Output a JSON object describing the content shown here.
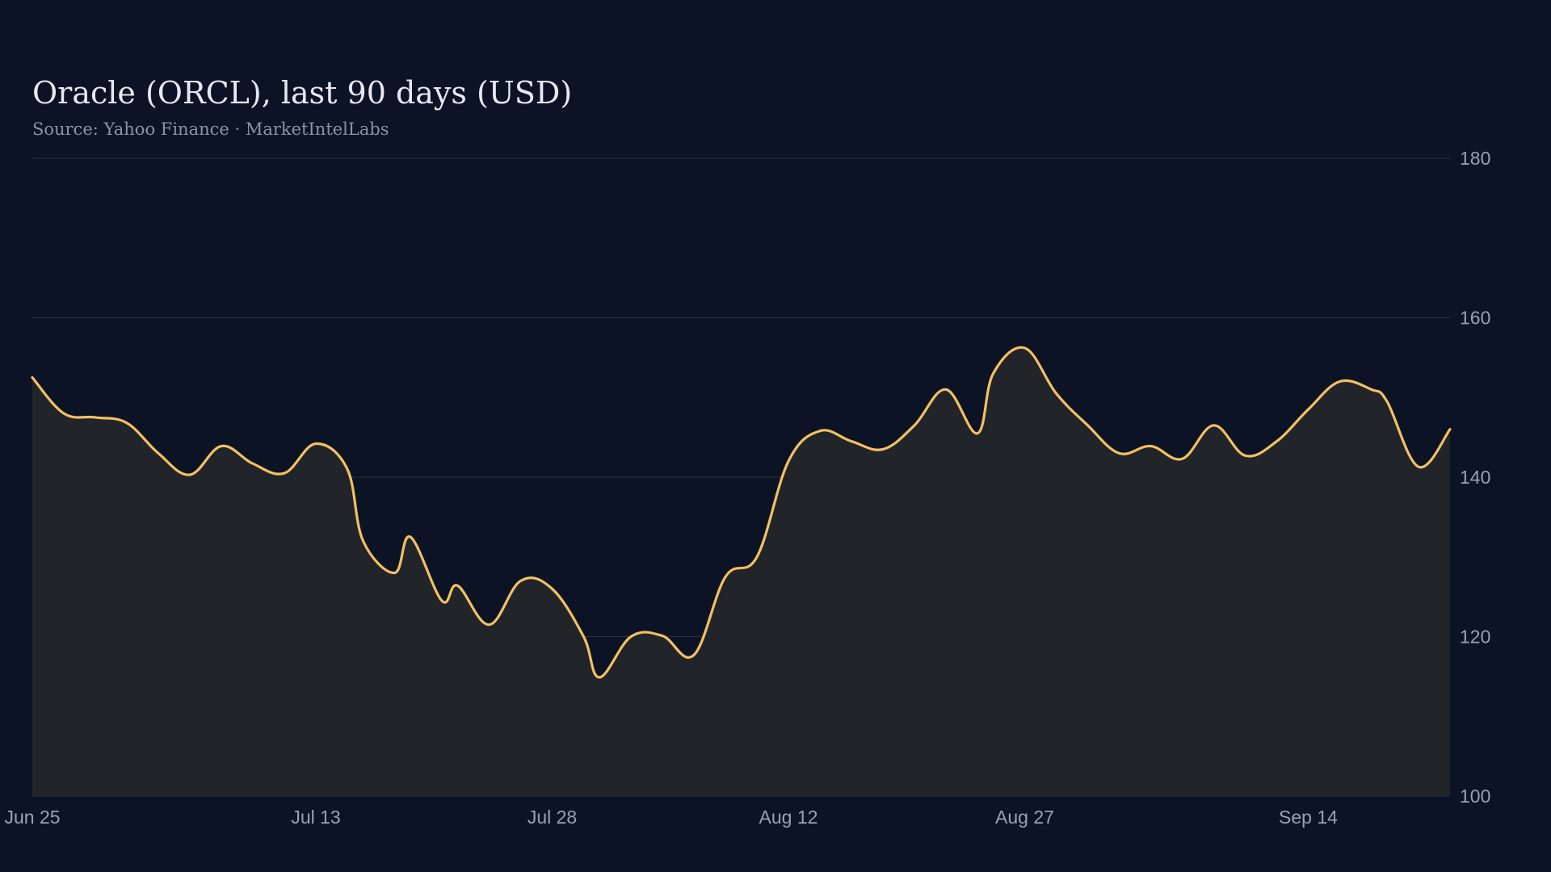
{
  "chart_data": {
    "type": "area",
    "title": "Oracle (ORCL), last 90 days (USD)",
    "subtitle": "Source: Yahoo Finance · MarketIntelLabs",
    "xlabel": "",
    "ylabel": "",
    "ylim": [
      100,
      180
    ],
    "y_ticks": [
      100,
      120,
      140,
      160,
      180
    ],
    "grid": true,
    "legend": "none",
    "x_tick_labels": [
      "Jun 25",
      "Jul 13",
      "Jul 28",
      "Aug 12",
      "Aug 27",
      "Sep 14"
    ],
    "x_ticks": [
      "2024-06-25",
      "2024-07-13",
      "2024-07-28",
      "2024-08-12",
      "2024-08-27",
      "2024-09-14"
    ],
    "x_range": [
      "2024-06-25",
      "2024-09-23"
    ],
    "colors": {
      "line": "#f2c063",
      "fill": "#212429",
      "background": "#0c1324"
    },
    "series": [
      {
        "x": [
          "2024-06-25",
          "2024-06-27",
          "2024-06-29",
          "2024-07-01",
          "2024-07-03",
          "2024-07-05",
          "2024-07-07",
          "2024-07-09",
          "2024-07-11",
          "2024-07-13",
          "2024-07-15",
          "2024-07-16",
          "2024-07-18",
          "2024-07-19",
          "2024-07-21",
          "2024-07-22",
          "2024-07-24",
          "2024-07-26",
          "2024-07-28",
          "2024-07-30",
          "2024-07-31",
          "2024-08-02",
          "2024-08-04",
          "2024-08-06",
          "2024-08-08",
          "2024-08-10",
          "2024-08-12",
          "2024-08-14",
          "2024-08-16",
          "2024-08-18",
          "2024-08-20",
          "2024-08-22",
          "2024-08-24",
          "2024-08-25",
          "2024-08-27",
          "2024-08-29",
          "2024-08-31",
          "2024-09-02",
          "2024-09-04",
          "2024-09-06",
          "2024-09-08",
          "2024-09-10",
          "2024-09-12",
          "2024-09-14",
          "2024-09-16",
          "2024-09-18",
          "2024-09-19",
          "2024-09-21",
          "2024-09-23"
        ],
        "values": [
          152.5,
          148.0,
          147.5,
          146.8,
          143.0,
          140.3,
          143.9,
          141.7,
          140.5,
          144.2,
          141.0,
          132.0,
          128.0,
          132.5,
          124.5,
          126.4,
          121.5,
          127.0,
          126.0,
          120.0,
          114.9,
          120.0,
          120.1,
          117.7,
          127.5,
          130.0,
          142.0,
          145.8,
          144.5,
          143.5,
          146.5,
          151.0,
          145.5,
          153.0,
          156.2,
          150.5,
          146.5,
          143.0,
          143.9,
          142.3,
          146.5,
          142.7,
          144.5,
          148.5,
          152.0,
          151.0,
          149.5,
          141.3,
          146.0
        ]
      }
    ]
  }
}
